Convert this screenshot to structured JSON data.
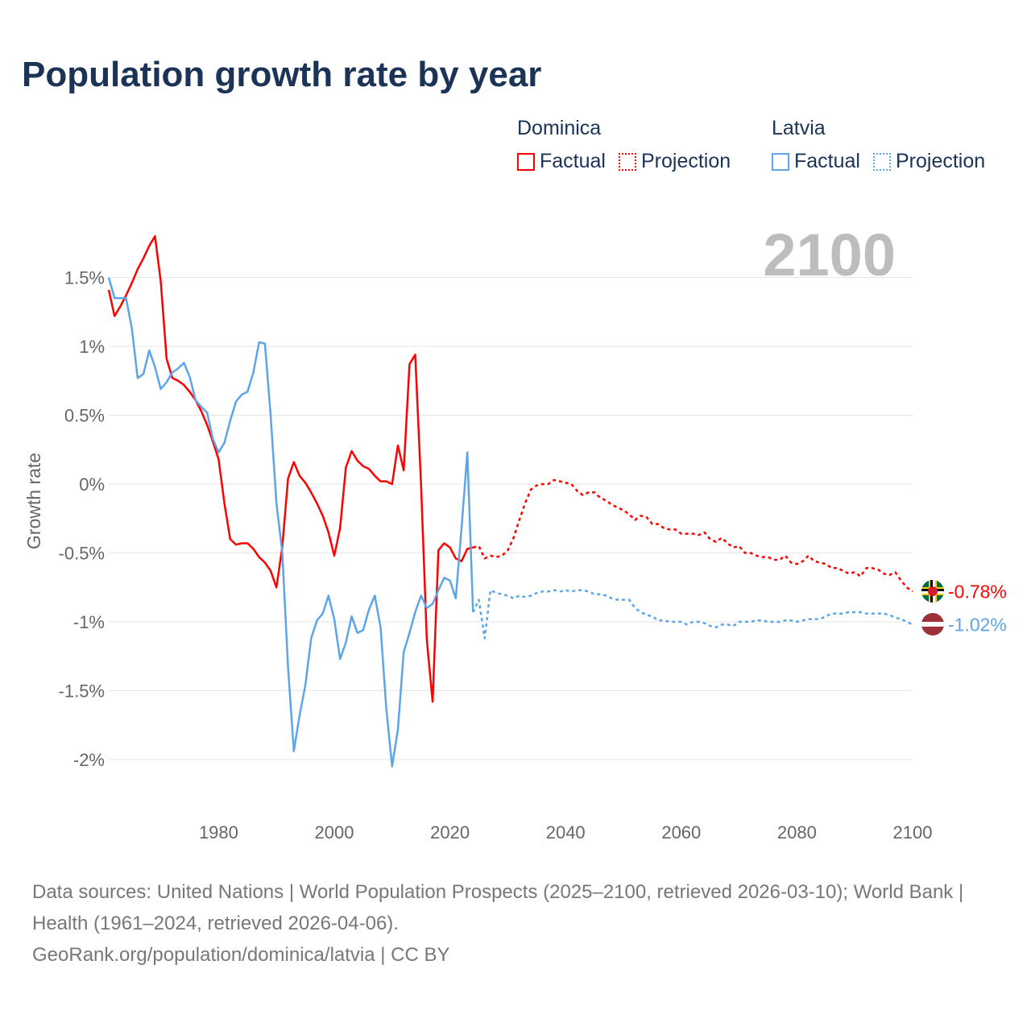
{
  "title": "Population growth rate by year",
  "legend": {
    "groups": [
      {
        "name": "Dominica",
        "color": "#ff0000",
        "factual": "Factual",
        "projection": "Projection"
      },
      {
        "name": "Latvia",
        "color": "#5ea5e8",
        "factual": "Factual",
        "projection": "Projection"
      }
    ]
  },
  "year_label": "2100",
  "footer": {
    "sources": "Data sources: United Nations | World Population Prospects (2025–2100, retrieved 2026-03-10); World Bank | Health (1961–2024, retrieved 2026-04-06).",
    "credit": "GeoRank.org/population/dominica/latvia | CC BY"
  },
  "chart_data": {
    "type": "line",
    "title": "Population growth rate by year",
    "xlabel": "",
    "ylabel": "Growth rate",
    "xlim": [
      1961,
      2100
    ],
    "ylim": [
      -2.2,
      1.85
    ],
    "grid": true,
    "x_ticks": [
      1980,
      2000,
      2020,
      2040,
      2060,
      2080,
      2100
    ],
    "y_ticks": [
      {
        "value": 1.5,
        "label": "1.5%"
      },
      {
        "value": 1,
        "label": "1%"
      },
      {
        "value": 0.5,
        "label": "0.5%"
      },
      {
        "value": 0,
        "label": "0%"
      },
      {
        "value": -0.5,
        "label": "-0.5%"
      },
      {
        "value": -1,
        "label": "-1%"
      },
      {
        "value": -1.5,
        "label": "-1.5%"
      },
      {
        "value": -2,
        "label": "-2%"
      }
    ],
    "series": [
      {
        "name": "Dominica",
        "kind": "Factual",
        "color": "#ff0000",
        "start_year": 1961,
        "values": [
          1.41,
          1.22,
          1.29,
          1.37,
          1.46,
          1.56,
          1.64,
          1.73,
          1.8,
          1.47,
          0.91,
          0.77,
          0.75,
          0.72,
          0.67,
          0.61,
          0.53,
          0.43,
          0.31,
          0.18,
          -0.14,
          -0.4,
          -0.44,
          -0.43,
          -0.43,
          -0.47,
          -0.53,
          -0.57,
          -0.63,
          -0.75,
          -0.46,
          0.04,
          0.16,
          0.06,
          0.01,
          -0.06,
          -0.14,
          -0.23,
          -0.35,
          -0.52,
          -0.32,
          0.12,
          0.24,
          0.17,
          0.13,
          0.11,
          0.06,
          0.02,
          0.02,
          0.0,
          0.28,
          0.1,
          0.87,
          0.94,
          0.0,
          -1.13,
          -1.58,
          -0.48,
          -0.43,
          -0.46,
          -0.54,
          -0.56,
          -0.47,
          -0.46
        ]
      },
      {
        "name": "Dominica",
        "kind": "Projection",
        "color": "#ff0000",
        "start_year": 2024,
        "values": [
          -0.46,
          -0.45,
          -0.54,
          -0.52,
          -0.53,
          -0.52,
          -0.48,
          -0.39,
          -0.26,
          -0.14,
          -0.04,
          -0.01,
          0.0,
          0.0,
          0.03,
          0.02,
          0.01,
          0.0,
          -0.05,
          -0.08,
          -0.06,
          -0.06,
          -0.1,
          -0.12,
          -0.15,
          -0.17,
          -0.19,
          -0.22,
          -0.26,
          -0.23,
          -0.24,
          -0.29,
          -0.29,
          -0.32,
          -0.33,
          -0.33,
          -0.36,
          -0.36,
          -0.36,
          -0.37,
          -0.35,
          -0.4,
          -0.42,
          -0.39,
          -0.43,
          -0.46,
          -0.45,
          -0.5,
          -0.5,
          -0.52,
          -0.53,
          -0.53,
          -0.55,
          -0.55,
          -0.52,
          -0.57,
          -0.58,
          -0.56,
          -0.52,
          -0.56,
          -0.57,
          -0.58,
          -0.61,
          -0.61,
          -0.63,
          -0.65,
          -0.64,
          -0.67,
          -0.61,
          -0.61,
          -0.62,
          -0.65,
          -0.66,
          -0.64,
          -0.7,
          -0.75,
          -0.78
        ]
      },
      {
        "name": "Latvia",
        "kind": "Factual",
        "color": "#5ea5e8",
        "start_year": 1961,
        "values": [
          1.5,
          1.35,
          1.35,
          1.35,
          1.13,
          0.77,
          0.8,
          0.97,
          0.85,
          0.69,
          0.74,
          0.81,
          0.84,
          0.88,
          0.78,
          0.61,
          0.56,
          0.52,
          0.33,
          0.23,
          0.3,
          0.46,
          0.6,
          0.65,
          0.67,
          0.81,
          1.03,
          1.02,
          0.5,
          -0.14,
          -0.49,
          -1.33,
          -1.94,
          -1.68,
          -1.46,
          -1.12,
          -0.99,
          -0.94,
          -0.81,
          -0.98,
          -1.27,
          -1.15,
          -0.96,
          -1.08,
          -1.06,
          -0.91,
          -0.81,
          -1.04,
          -1.63,
          -2.05,
          -1.78,
          -1.22,
          -1.08,
          -0.93,
          -0.81,
          -0.9,
          -0.87,
          -0.77,
          -0.68,
          -0.7,
          -0.83,
          -0.32,
          0.23,
          -0.93
        ]
      },
      {
        "name": "Latvia",
        "kind": "Projection",
        "color": "#5ea5e8",
        "start_year": 2024,
        "values": [
          -0.93,
          -0.84,
          -1.12,
          -0.77,
          -0.79,
          -0.8,
          -0.81,
          -0.83,
          -0.81,
          -0.82,
          -0.81,
          -0.79,
          -0.78,
          -0.78,
          -0.77,
          -0.78,
          -0.77,
          -0.78,
          -0.77,
          -0.77,
          -0.78,
          -0.8,
          -0.8,
          -0.81,
          -0.83,
          -0.84,
          -0.84,
          -0.84,
          -0.9,
          -0.93,
          -0.95,
          -0.96,
          -0.99,
          -0.99,
          -1.0,
          -1.0,
          -1.0,
          -1.02,
          -1.0,
          -1.0,
          -1.01,
          -1.03,
          -1.04,
          -1.02,
          -1.02,
          -1.03,
          -1.0,
          -1.0,
          -1.0,
          -0.99,
          -0.99,
          -1.0,
          -1.0,
          -1.0,
          -0.99,
          -0.99,
          -1.0,
          -0.99,
          -0.98,
          -0.98,
          -0.98,
          -0.96,
          -0.94,
          -0.94,
          -0.94,
          -0.93,
          -0.93,
          -0.93,
          -0.94,
          -0.94,
          -0.94,
          -0.94,
          -0.95,
          -0.97,
          -0.98,
          -1.0,
          -1.02
        ]
      }
    ],
    "end_labels": [
      {
        "name": "Dominica",
        "label": "-0.78%",
        "color": "#ff0000"
      },
      {
        "name": "Latvia",
        "label": "-1.02%",
        "color": "#5ea5e8"
      }
    ]
  }
}
